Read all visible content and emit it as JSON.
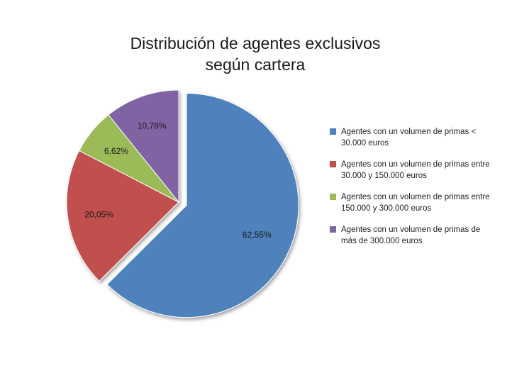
{
  "chart_data": {
    "type": "pie",
    "title_lines": [
      "Distribución de agentes exclusivos",
      "según cartera"
    ],
    "slices": [
      {
        "name": "Agentes con un volumen de primas  < 30.000 euros",
        "value": 62.55,
        "label": "62,55%",
        "color": "#4f81bd",
        "exploded": true
      },
      {
        "name": "Agentes con un volumen de primas  entre 30.000 y 150.000 euros",
        "value": 20.05,
        "label": "20,05%",
        "color": "#c0504d",
        "exploded": false
      },
      {
        "name": "Agentes con un volumen de primas  entre 150.000 y 300.000 euros",
        "value": 6.62,
        "label": "6,62%",
        "color": "#9bbb59",
        "exploded": false
      },
      {
        "name": "Agentes con un volumen de primas  de más de 300.000 euros",
        "value": 10.78,
        "label": "10,78%",
        "color": "#8064a2",
        "exploded": false
      }
    ],
    "legend_position": "right",
    "grid": false
  }
}
